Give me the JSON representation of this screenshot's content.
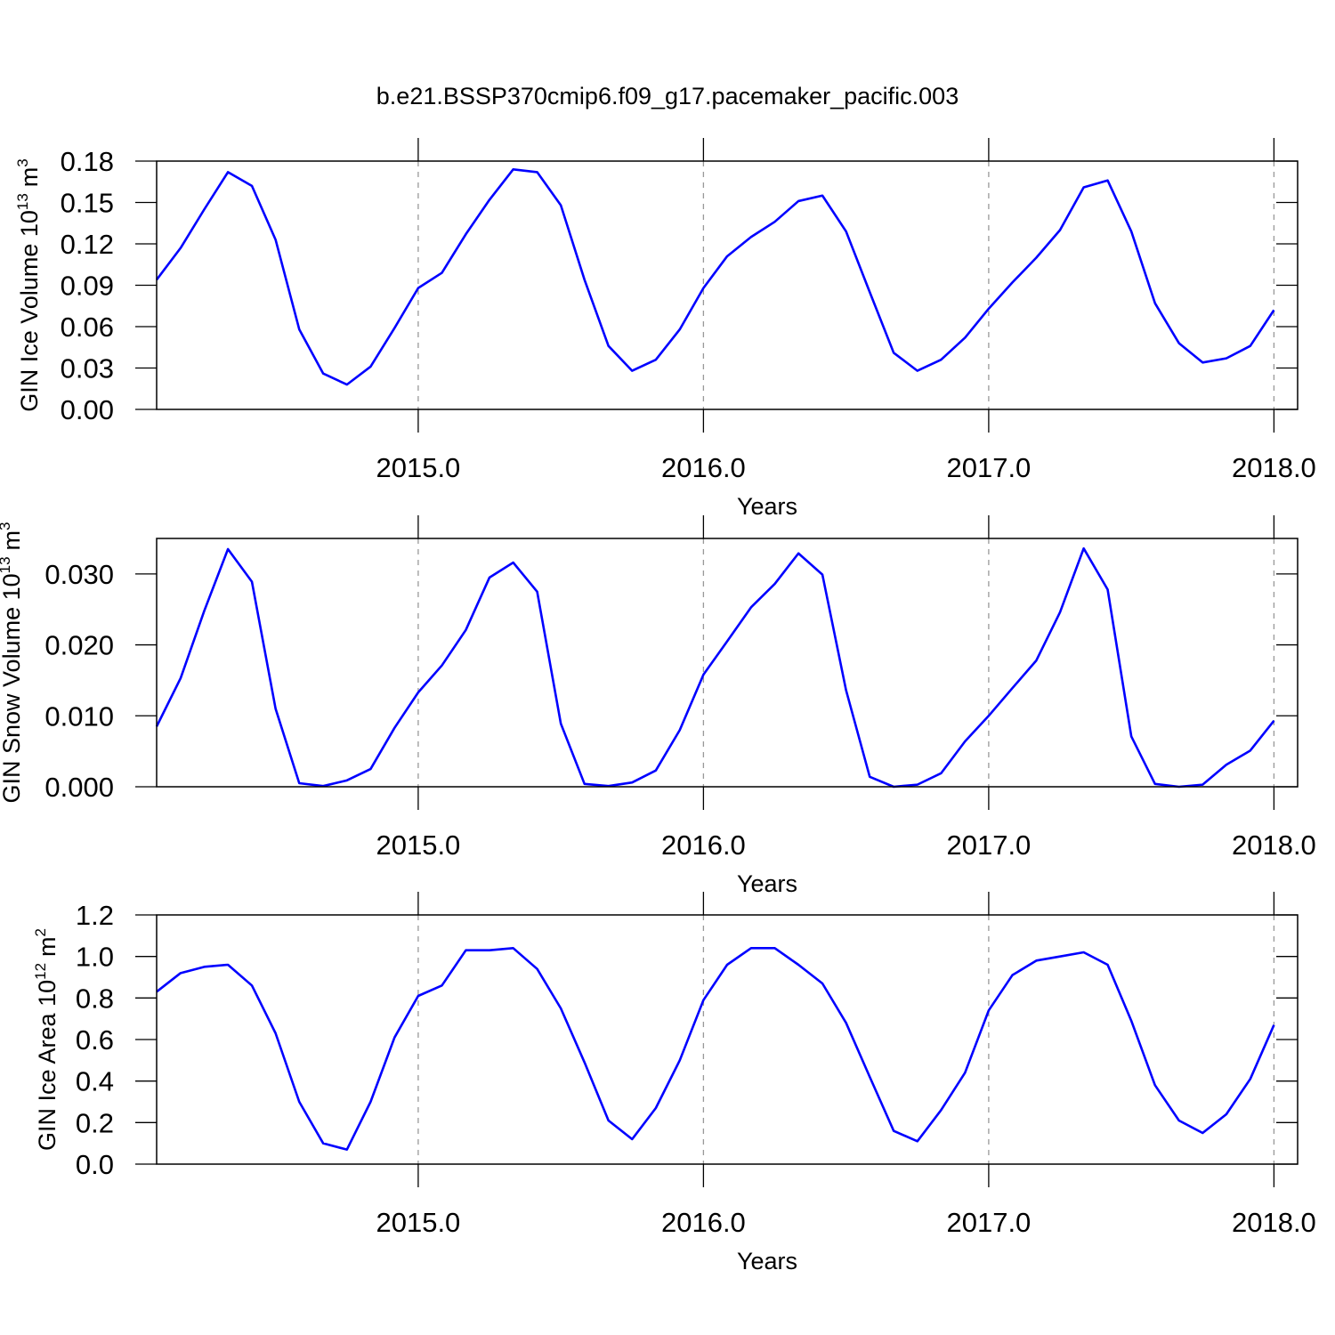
{
  "chart_data": [
    {
      "type": "line",
      "title": "b.e21.BSSP370cmip6.f09_g17.pacemaker_pacific.003",
      "xlabel": "Years",
      "ylabel": {
        "base": "GIN Ice Volume 10",
        "power": "13",
        "unit": "m",
        "unit_power": "3"
      },
      "x": [
        2014.083,
        2014.167,
        2014.25,
        2014.333,
        2014.417,
        2014.5,
        2014.583,
        2014.667,
        2014.75,
        2014.833,
        2014.917,
        2015,
        2015.083,
        2015.167,
        2015.25,
        2015.333,
        2015.417,
        2015.5,
        2015.583,
        2015.667,
        2015.75,
        2015.833,
        2015.917,
        2016,
        2016.083,
        2016.167,
        2016.25,
        2016.333,
        2016.417,
        2016.5,
        2016.583,
        2016.667,
        2016.75,
        2016.833,
        2016.917,
        2017,
        2017.083,
        2017.167,
        2017.25,
        2017.333,
        2017.417,
        2017.5,
        2017.583,
        2017.667,
        2017.75,
        2017.833,
        2017.917,
        2018
      ],
      "series": [
        {
          "color": "#0000ff",
          "values": [
            0.094,
            0.117,
            0.145,
            0.172,
            0.162,
            0.123,
            0.058,
            0.026,
            0.018,
            0.031,
            0.059,
            0.088,
            0.099,
            0.127,
            0.152,
            0.174,
            0.172,
            0.148,
            0.094,
            0.046,
            0.028,
            0.036,
            0.058,
            0.088,
            0.111,
            0.125,
            0.136,
            0.151,
            0.155,
            0.129,
            0.085,
            0.041,
            0.028,
            0.036,
            0.052,
            0.073,
            0.092,
            0.11,
            0.13,
            0.161,
            0.166,
            0.129,
            0.077,
            0.048,
            0.034,
            0.037,
            0.046,
            0.072
          ]
        }
      ],
      "xlim": [
        2014.083,
        2018.083
      ],
      "xticks": [
        {
          "value": 2015,
          "label": "2015.0"
        },
        {
          "value": 2016,
          "label": "2016.0"
        },
        {
          "value": 2017,
          "label": "2017.0"
        },
        {
          "value": 2018,
          "label": "2018.0"
        }
      ],
      "ylim": [
        0,
        0.18
      ],
      "yticks": [
        {
          "value": 0,
          "label": "0.00"
        },
        0.03,
        0.06,
        0.09,
        0.12,
        0.15,
        0.18
      ],
      "grid": "x"
    },
    {
      "type": "line",
      "xlabel": "Years",
      "ylabel": {
        "base": "GIN Snow Volume 10",
        "power": "13",
        "unit": "m",
        "unit_power": "3"
      },
      "x": [
        2014.083,
        2014.167,
        2014.25,
        2014.333,
        2014.417,
        2014.5,
        2014.583,
        2014.667,
        2014.75,
        2014.833,
        2014.917,
        2015,
        2015.083,
        2015.167,
        2015.25,
        2015.333,
        2015.417,
        2015.5,
        2015.583,
        2015.667,
        2015.75,
        2015.833,
        2015.917,
        2016,
        2016.083,
        2016.167,
        2016.25,
        2016.333,
        2016.417,
        2016.5,
        2016.583,
        2016.667,
        2016.75,
        2016.833,
        2016.917,
        2017,
        2017.083,
        2017.167,
        2017.25,
        2017.333,
        2017.417,
        2017.5,
        2017.583,
        2017.667,
        2017.75,
        2017.833,
        2017.917,
        2018
      ],
      "series": [
        {
          "color": "#0000ff",
          "values": [
            0.0085,
            0.0153,
            0.0248,
            0.0335,
            0.0289,
            0.011,
            0.0005,
            0.0001,
            0.0009,
            0.0025,
            0.0083,
            0.0133,
            0.0171,
            0.0221,
            0.0295,
            0.0316,
            0.0275,
            0.0089,
            0.0004,
            0.0001,
            0.0006,
            0.0023,
            0.008,
            0.0158,
            0.0205,
            0.0253,
            0.0286,
            0.0329,
            0.0299,
            0.0136,
            0.0014,
            0,
            0.0003,
            0.0019,
            0.0064,
            0.01,
            0.0139,
            0.0178,
            0.0246,
            0.0336,
            0.0278,
            0.0071,
            0.0004,
            0,
            0.0003,
            0.0031,
            0.0051,
            0.0093
          ]
        }
      ],
      "xlim": [
        2014.083,
        2018.083
      ],
      "xticks": [
        {
          "value": 2015,
          "label": "2015.0"
        },
        {
          "value": 2016,
          "label": "2016.0"
        },
        {
          "value": 2017,
          "label": "2017.0"
        },
        {
          "value": 2018,
          "label": "2018.0"
        }
      ],
      "ylim": [
        0,
        0.035
      ],
      "yticks": [
        {
          "value": 0,
          "label": "0.000"
        },
        {
          "value": 0.01,
          "label": "0.010"
        },
        {
          "value": 0.02,
          "label": "0.020"
        },
        {
          "value": 0.03,
          "label": "0.030"
        }
      ],
      "grid": "x"
    },
    {
      "type": "line",
      "xlabel": "Years",
      "ylabel": {
        "base": "GIN Ice Area 10",
        "power": "12",
        "unit": "m",
        "unit_power": "2"
      },
      "x": [
        2014.083,
        2014.167,
        2014.25,
        2014.333,
        2014.417,
        2014.5,
        2014.583,
        2014.667,
        2014.75,
        2014.833,
        2014.917,
        2015,
        2015.083,
        2015.167,
        2015.25,
        2015.333,
        2015.417,
        2015.5,
        2015.583,
        2015.667,
        2015.75,
        2015.833,
        2015.917,
        2016,
        2016.083,
        2016.167,
        2016.25,
        2016.333,
        2016.417,
        2016.5,
        2016.583,
        2016.667,
        2016.75,
        2016.833,
        2016.917,
        2017,
        2017.083,
        2017.167,
        2017.25,
        2017.333,
        2017.417,
        2017.5,
        2017.583,
        2017.667,
        2017.75,
        2017.833,
        2017.917,
        2018
      ],
      "series": [
        {
          "color": "#0000ff",
          "values": [
            0.83,
            0.92,
            0.95,
            0.96,
            0.86,
            0.63,
            0.3,
            0.1,
            0.07,
            0.3,
            0.61,
            0.81,
            0.86,
            1.03,
            1.03,
            1.04,
            0.94,
            0.75,
            0.49,
            0.21,
            0.12,
            0.27,
            0.5,
            0.79,
            0.96,
            1.04,
            1.04,
            0.96,
            0.87,
            0.68,
            0.42,
            0.16,
            0.11,
            0.26,
            0.44,
            0.74,
            0.91,
            0.98,
            1.0,
            1.02,
            0.96,
            0.69,
            0.38,
            0.21,
            0.15,
            0.24,
            0.41,
            0.67
          ]
        }
      ],
      "xlim": [
        2014.083,
        2018.083
      ],
      "xticks": [
        {
          "value": 2015,
          "label": "2015.0"
        },
        {
          "value": 2016,
          "label": "2016.0"
        },
        {
          "value": 2017,
          "label": "2017.0"
        },
        {
          "value": 2018,
          "label": "2018.0"
        }
      ],
      "ylim": [
        0,
        1.2
      ],
      "yticks": [
        {
          "value": 0,
          "label": "0.0"
        },
        0.2,
        0.4,
        0.6,
        0.8,
        {
          "value": 1,
          "label": "1.0"
        },
        1.2
      ],
      "grid": "x"
    }
  ]
}
